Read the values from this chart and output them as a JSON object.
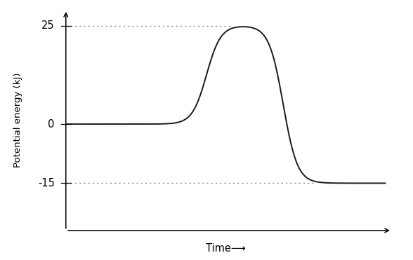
{
  "title": "",
  "xlabel": "Time⟶",
  "ylabel": "Potential energy (kJ)",
  "reactant_level": 0,
  "product_level": -15,
  "peak_level": 25,
  "dotted_lines": [
    25,
    -15
  ],
  "background_color": "#ffffff",
  "line_color": "#1a1a1a",
  "dotted_color": "#888888",
  "ytick_labels": [
    "0",
    "25",
    "-15"
  ],
  "ytick_values": [
    0,
    25,
    -15
  ]
}
